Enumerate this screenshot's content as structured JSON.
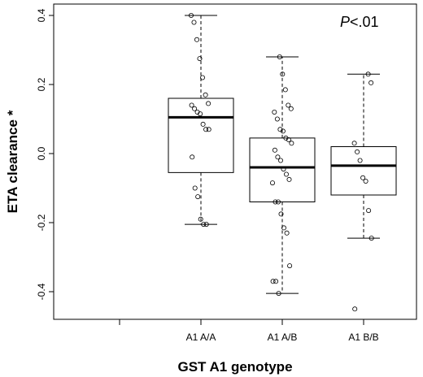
{
  "chart_data": {
    "type": "box",
    "xlabel": "GST A1 genotype",
    "ylabel": "ETA clearance *",
    "annotation": "P<.01",
    "annotation_italic_part": "P",
    "annotation_rest": "<.01",
    "ylim": [
      -0.48,
      0.42
    ],
    "yticks": [
      -0.4,
      -0.2,
      0.0,
      0.2,
      0.4
    ],
    "ytick_labels": [
      "-0.4",
      "-0.2",
      "0.0",
      "0.2",
      "0.4"
    ],
    "categories": [
      "",
      "A1 A/A",
      "A1 A/B",
      "A1 B/B"
    ],
    "groups": [
      {
        "label": "A1 A/A",
        "min": -0.205,
        "q1": -0.055,
        "median": 0.105,
        "q3": 0.16,
        "max": 0.4,
        "points": [
          0.4,
          0.38,
          0.33,
          0.275,
          0.22,
          0.17,
          0.145,
          0.14,
          0.13,
          0.12,
          0.115,
          0.085,
          0.07,
          0.07,
          -0.01,
          -0.1,
          -0.125,
          -0.19,
          -0.205,
          -0.205
        ]
      },
      {
        "label": "A1 A/B",
        "min": -0.405,
        "q1": -0.14,
        "median": -0.04,
        "q3": 0.045,
        "max": 0.28,
        "points": [
          0.28,
          0.23,
          0.185,
          0.14,
          0.13,
          0.12,
          0.1,
          0.07,
          0.065,
          0.045,
          0.04,
          0.03,
          0.01,
          -0.01,
          -0.02,
          -0.045,
          -0.06,
          -0.075,
          -0.085,
          -0.14,
          -0.14,
          -0.175,
          -0.215,
          -0.23,
          -0.325,
          -0.37,
          -0.37,
          -0.405
        ]
      },
      {
        "label": "A1 B/B",
        "min": -0.245,
        "q1": -0.12,
        "median": -0.035,
        "q3": 0.02,
        "max": 0.23,
        "points": [
          0.23,
          0.205,
          0.03,
          0.005,
          -0.02,
          -0.07,
          -0.08,
          -0.165,
          -0.245,
          -0.45
        ]
      }
    ]
  }
}
